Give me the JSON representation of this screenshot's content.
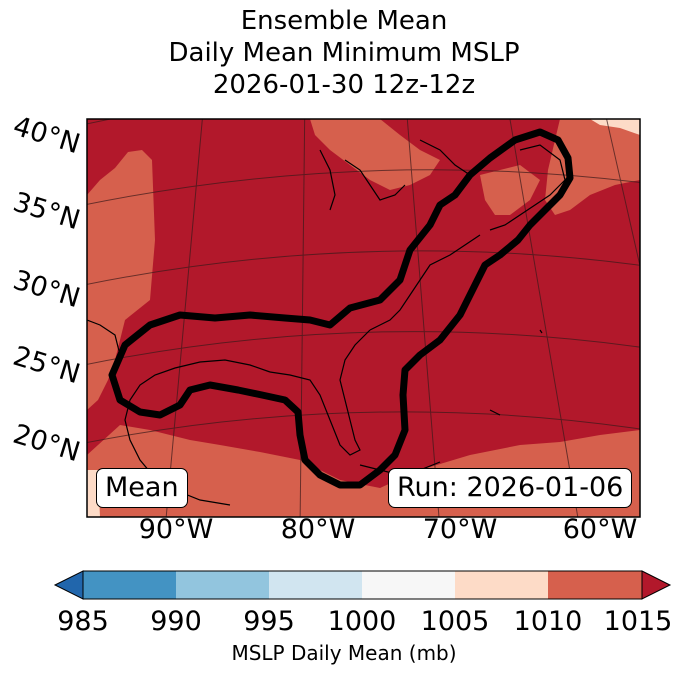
{
  "title_lines": [
    "Ensemble Mean",
    "Daily Mean Minimum MSLP",
    "2026-01-30 12z-12z"
  ],
  "map": {
    "lat_labels": [
      "40°N",
      "35°N",
      "30°N",
      "25°N",
      "20°N"
    ],
    "lon_labels": [
      "90°W",
      "80°W",
      "70°W",
      "60°W"
    ],
    "mean_label": "Mean",
    "run_label": "Run: 2026-01-06",
    "colors": {
      "fill_1010_1015": "#b2182b",
      "fill_1005_1010": "#d6604d",
      "fill_1000_1005": "#fddbc7",
      "contour": "#000000"
    }
  },
  "colorbar": {
    "ticks": [
      "985",
      "990",
      "995",
      "1000",
      "1005",
      "1010",
      "1015"
    ],
    "colors": [
      "#2166ac",
      "#4393c3",
      "#92c5de",
      "#d1e5f0",
      "#f7f7f7",
      "#fddbc7",
      "#d6604d",
      "#b2182b"
    ],
    "label": "MSLP Daily Mean (mb)"
  }
}
